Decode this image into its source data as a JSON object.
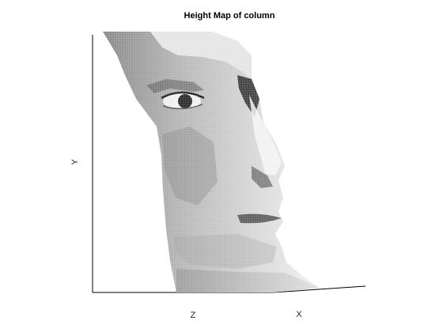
{
  "chart_data": {
    "type": "surface",
    "title": "Height Map of column",
    "xlabel": "X",
    "ylabel": "Y",
    "zlabel": "Z",
    "colormap": "gray",
    "grid": false,
    "legend": "none",
    "surface": {
      "name": "",
      "kind": "3D mesh height map",
      "depicts": "face",
      "view": "profile"
    }
  }
}
